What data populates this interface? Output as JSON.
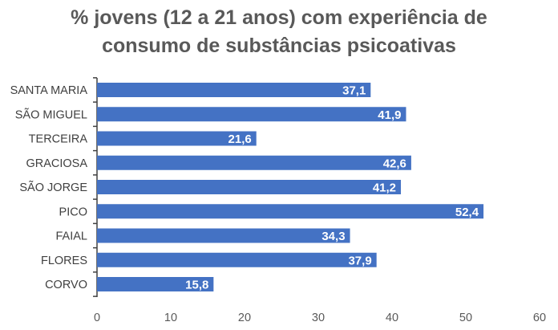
{
  "chart_data": {
    "type": "bar",
    "orientation": "horizontal",
    "title_lines": [
      "% jovens (12 a 21 anos) com experiência de",
      "consumo de substâncias psicoativas"
    ],
    "categories": [
      "SANTA MARIA",
      "SÃO MIGUEL",
      "TERCEIRA",
      "GRACIOSA",
      "SÃO JORGE",
      "PICO",
      "FAIAL",
      "FLORES",
      "CORVO"
    ],
    "values": [
      37.1,
      41.9,
      21.6,
      42.6,
      41.2,
      52.4,
      34.3,
      37.9,
      15.8
    ],
    "data_labels": [
      "37,1",
      "41,9",
      "21,6",
      "42,6",
      "41,2",
      "52,4",
      "34,3",
      "37,9",
      "15,8"
    ],
    "xlim": [
      0,
      60
    ],
    "x_ticks": [
      0,
      10,
      20,
      30,
      40,
      50,
      60
    ],
    "x_tick_labels": [
      "0",
      "10",
      "20",
      "30",
      "40",
      "50",
      "60"
    ],
    "xlabel": "",
    "ylabel": "",
    "grid": false,
    "legend": "none",
    "bar_color": "#4472C4",
    "label_color": "#ffffff"
  }
}
